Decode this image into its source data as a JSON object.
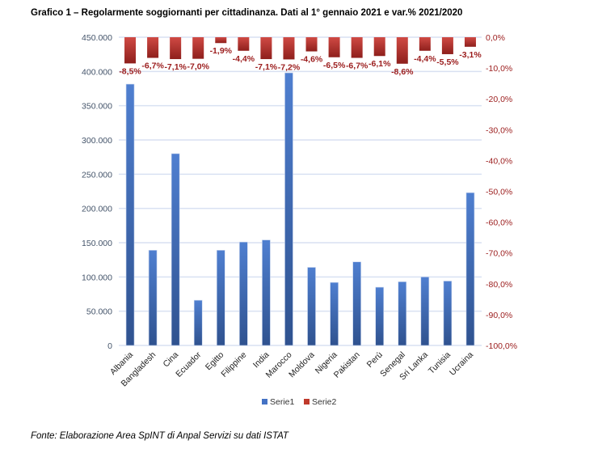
{
  "title": "Grafico 1 – Regolarmente soggiornanti per cittadinanza. Dati al 1° gennaio 2021 e var.% 2021/2020",
  "source": "Fonte: Elaborazione Area SpINT di Anpal Servizi su dati ISTAT",
  "chart_data": {
    "type": "bar",
    "categories": [
      "Albania",
      "Bangladesh",
      "Cina",
      "Ecuador",
      "Egitto",
      "Filippine",
      "India",
      "Marocco",
      "Moldova",
      "Nigeria",
      "Pakistan",
      "Perù",
      "Senegal",
      "Sri Lanka",
      "Tunisia",
      "Ucraina"
    ],
    "series": [
      {
        "name": "Serie1",
        "axis": "left",
        "color": "#4472c4",
        "values": [
          381500,
          139000,
          280000,
          66000,
          139000,
          151000,
          154000,
          398000,
          114000,
          92000,
          122000,
          85000,
          93000,
          100000,
          94000,
          223000
        ]
      },
      {
        "name": "Serie2",
        "axis": "right",
        "color": "#c0392b",
        "values": [
          -8.5,
          -6.7,
          -7.1,
          -7.0,
          -1.9,
          -4.4,
          -7.1,
          -7.2,
          -4.6,
          -6.5,
          -6.7,
          -6.1,
          -8.6,
          -4.4,
          -5.5,
          -3.1
        ],
        "labels": [
          "-8,5%",
          "-6,7%",
          "-7,1%",
          "-7,0%",
          "-1,9%",
          "-4,4%",
          "-7,1%",
          "-7,2%",
          "-4,6%",
          "-6,5%",
          "-6,7%",
          "-6,1%",
          "-8,6%",
          "-4,4%",
          "-5,5%",
          "-3,1%"
        ]
      }
    ],
    "left_axis": {
      "ylim": [
        0,
        450000
      ],
      "ticks": [
        "0",
        "50.000",
        "100.000",
        "150.000",
        "200.000",
        "250.000",
        "300.000",
        "350.000",
        "400.000",
        "450.000"
      ]
    },
    "right_axis": {
      "ylim": [
        -100,
        0
      ],
      "ticks": [
        "0,0%",
        "-10,0%",
        "-20,0%",
        "-30,0%",
        "-40,0%",
        "-50,0%",
        "-60,0%",
        "-70,0%",
        "-80,0%",
        "-90,0%",
        "-100,0%"
      ]
    },
    "grid": true,
    "legend": "bottom",
    "legend_entries": [
      "Serie1",
      "Serie2"
    ]
  }
}
